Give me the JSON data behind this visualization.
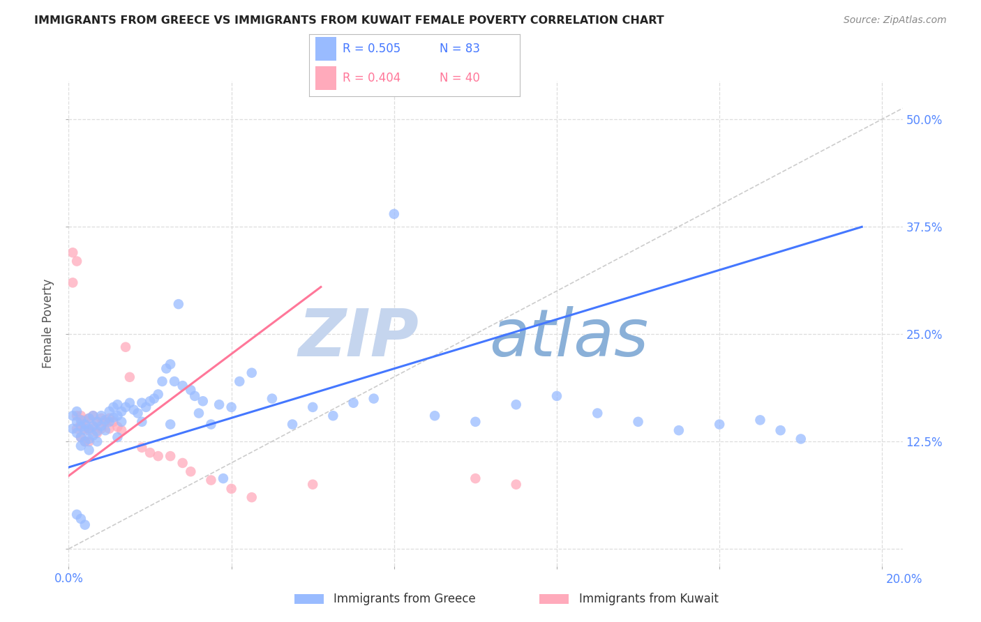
{
  "title": "IMMIGRANTS FROM GREECE VS IMMIGRANTS FROM KUWAIT FEMALE POVERTY CORRELATION CHART",
  "source": "Source: ZipAtlas.com",
  "ylabel": "Female Poverty",
  "ytick_labels": [
    "",
    "12.5%",
    "25.0%",
    "37.5%",
    "50.0%"
  ],
  "ytick_values": [
    0.0,
    0.125,
    0.25,
    0.375,
    0.5
  ],
  "xlim": [
    0.0,
    0.205
  ],
  "ylim": [
    -0.02,
    0.545
  ],
  "greece_color": "#99bbff",
  "kuwait_color": "#ffaabb",
  "greece_line_color": "#4477ff",
  "kuwait_line_color": "#ff7799",
  "legend_greece_R": "R = 0.505",
  "legend_greece_N": "N = 83",
  "legend_kuwait_R": "R = 0.404",
  "legend_kuwait_N": "N = 40",
  "greece_scatter_x": [
    0.001,
    0.001,
    0.002,
    0.002,
    0.002,
    0.003,
    0.003,
    0.003,
    0.003,
    0.004,
    0.004,
    0.004,
    0.005,
    0.005,
    0.005,
    0.005,
    0.006,
    0.006,
    0.006,
    0.007,
    0.007,
    0.007,
    0.008,
    0.008,
    0.009,
    0.009,
    0.01,
    0.01,
    0.011,
    0.011,
    0.012,
    0.012,
    0.013,
    0.013,
    0.014,
    0.015,
    0.016,
    0.017,
    0.018,
    0.019,
    0.02,
    0.021,
    0.022,
    0.023,
    0.024,
    0.025,
    0.026,
    0.027,
    0.028,
    0.03,
    0.031,
    0.033,
    0.035,
    0.037,
    0.04,
    0.042,
    0.045,
    0.05,
    0.055,
    0.06,
    0.065,
    0.07,
    0.075,
    0.08,
    0.09,
    0.1,
    0.11,
    0.12,
    0.13,
    0.14,
    0.15,
    0.16,
    0.17,
    0.175,
    0.18,
    0.012,
    0.018,
    0.025,
    0.032,
    0.038,
    0.002,
    0.003,
    0.004
  ],
  "greece_scatter_y": [
    0.155,
    0.14,
    0.16,
    0.148,
    0.135,
    0.15,
    0.142,
    0.13,
    0.12,
    0.145,
    0.138,
    0.125,
    0.152,
    0.14,
    0.128,
    0.115,
    0.155,
    0.143,
    0.132,
    0.148,
    0.137,
    0.125,
    0.155,
    0.143,
    0.15,
    0.138,
    0.16,
    0.148,
    0.165,
    0.153,
    0.168,
    0.155,
    0.16,
    0.148,
    0.165,
    0.17,
    0.162,
    0.158,
    0.17,
    0.165,
    0.172,
    0.175,
    0.18,
    0.195,
    0.21,
    0.215,
    0.195,
    0.285,
    0.19,
    0.185,
    0.178,
    0.172,
    0.145,
    0.168,
    0.165,
    0.195,
    0.205,
    0.175,
    0.145,
    0.165,
    0.155,
    0.17,
    0.175,
    0.39,
    0.155,
    0.148,
    0.168,
    0.178,
    0.158,
    0.148,
    0.138,
    0.145,
    0.15,
    0.138,
    0.128,
    0.13,
    0.148,
    0.145,
    0.158,
    0.082,
    0.04,
    0.035,
    0.028
  ],
  "kuwait_scatter_x": [
    0.001,
    0.001,
    0.002,
    0.002,
    0.002,
    0.003,
    0.003,
    0.003,
    0.004,
    0.004,
    0.004,
    0.005,
    0.005,
    0.005,
    0.006,
    0.006,
    0.007,
    0.007,
    0.008,
    0.008,
    0.009,
    0.01,
    0.01,
    0.011,
    0.012,
    0.013,
    0.014,
    0.015,
    0.018,
    0.02,
    0.022,
    0.025,
    0.028,
    0.03,
    0.035,
    0.04,
    0.045,
    0.06,
    0.1,
    0.11
  ],
  "kuwait_scatter_y": [
    0.345,
    0.31,
    0.335,
    0.155,
    0.14,
    0.155,
    0.145,
    0.13,
    0.15,
    0.14,
    0.125,
    0.152,
    0.138,
    0.125,
    0.155,
    0.142,
    0.148,
    0.135,
    0.152,
    0.14,
    0.148,
    0.152,
    0.14,
    0.148,
    0.142,
    0.138,
    0.235,
    0.2,
    0.118,
    0.112,
    0.108,
    0.108,
    0.1,
    0.09,
    0.08,
    0.07,
    0.06,
    0.075,
    0.082,
    0.075
  ],
  "greece_trend_x": [
    0.0,
    0.195
  ],
  "greece_trend_y": [
    0.095,
    0.375
  ],
  "kuwait_trend_x": [
    0.0,
    0.062
  ],
  "kuwait_trend_y": [
    0.085,
    0.305
  ],
  "dashed_line_x": [
    0.0,
    0.205
  ],
  "dashed_line_y": [
    0.0,
    0.513
  ],
  "grid_color": "#dddddd",
  "xtick_positions": [
    0.0,
    0.04,
    0.08,
    0.12,
    0.16,
    0.2
  ],
  "title_color": "#222222",
  "axis_color": "#5588ff",
  "watermark_zip_color": "#c5d5ee",
  "watermark_atlas_color": "#8ab0d8"
}
